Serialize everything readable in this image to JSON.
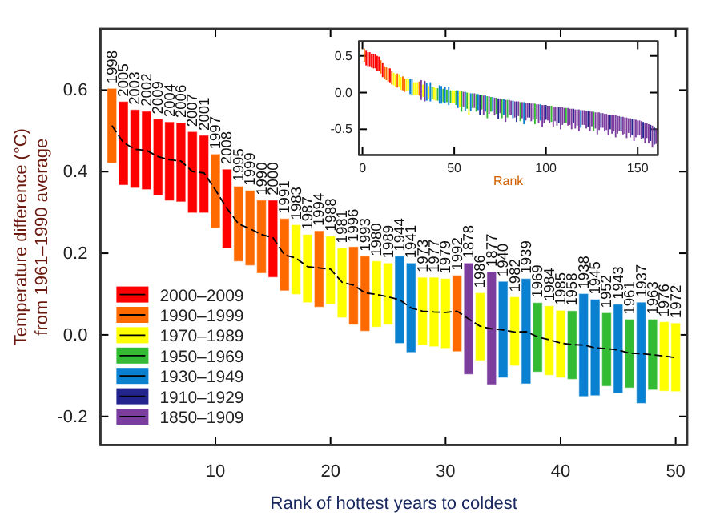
{
  "chart_data": [
    {
      "type": "bar",
      "xlabel": "Rank of hottest years to coldest",
      "ylabel": "Temperature difference (°C)\nfrom 1961–1990 average",
      "xlim": [
        0,
        51
      ],
      "xticks": [
        10,
        20,
        30,
        40,
        50
      ],
      "ylim": [
        -0.27,
        0.75
      ],
      "yticks": [
        -0.2,
        {
          "value": 0,
          "label": "0.0"
        },
        0.2,
        0.4,
        0.6
      ],
      "legend": "bottom left",
      "series": [
        {
          "name": "2000–2009",
          "color": "#ff0000",
          "x": [
            2,
            3,
            4,
            5,
            6,
            7,
            8,
            9,
            11,
            15
          ],
          "base": [
            0.367,
            0.36,
            0.356,
            0.342,
            0.329,
            0.326,
            0.299,
            0.299,
            0.212,
            0.141
          ],
          "values": [
            0.205,
            0.192,
            0.192,
            0.187,
            0.193,
            0.194,
            0.199,
            0.19,
            0.194,
            0.189
          ]
        },
        {
          "name": "1990–1999",
          "color": "#ff6a00",
          "x": [
            1,
            10,
            12,
            13,
            14,
            16,
            19,
            22,
            23,
            31
          ],
          "base": [
            0.421,
            0.262,
            0.18,
            0.17,
            0.151,
            0.108,
            0.068,
            0.025,
            0.009,
            -0.041
          ],
          "values": [
            0.183,
            0.181,
            0.184,
            0.184,
            0.179,
            0.177,
            0.187,
            0.191,
            0.184,
            0.187
          ]
        },
        {
          "name": "1970–1989",
          "color": "#ffff00",
          "x": [
            17,
            18,
            20,
            21,
            24,
            25,
            28,
            29,
            30,
            33,
            36,
            39,
            40,
            49,
            50
          ],
          "base": [
            0.099,
            0.079,
            0.075,
            0.042,
            0.019,
            0.025,
            -0.025,
            -0.029,
            -0.033,
            -0.063,
            -0.076,
            -0.099,
            -0.105,
            -0.138,
            -0.139
          ],
          "values": [
            0.171,
            0.167,
            0.167,
            0.171,
            0.162,
            0.151,
            0.166,
            0.17,
            0.171,
            0.166,
            0.169,
            0.17,
            0.165,
            0.17,
            0.168
          ]
        },
        {
          "name": "1950–1969",
          "color": "#33bb33",
          "x": [
            38,
            41,
            44,
            46,
            48
          ],
          "base": [
            -0.091,
            -0.109,
            -0.126,
            -0.13,
            -0.135
          ],
          "values": [
            0.17,
            0.168,
            0.18,
            0.168,
            0.173
          ]
        },
        {
          "name": "1930–1949",
          "color": "#0a80d0",
          "x": [
            26,
            27,
            35,
            37,
            42,
            43,
            45,
            47
          ],
          "base": [
            -0.021,
            -0.043,
            -0.105,
            -0.12,
            -0.151,
            -0.149,
            -0.143,
            -0.168
          ],
          "values": [
            0.214,
            0.219,
            0.236,
            0.258,
            0.252,
            0.236,
            0.218,
            0.248
          ]
        },
        {
          "name": "1910–1929",
          "color": "#24248f"
        },
        {
          "name": "1850–1909",
          "color": "#7b3d9e",
          "x": [
            32,
            34
          ],
          "base": [
            -0.097,
            -0.122
          ],
          "values": [
            0.273,
            0.277
          ]
        },
        {
          "type": "line",
          "color": "#000000",
          "line_style": "dashed",
          "x": [
            1,
            2,
            3,
            4,
            5,
            6,
            7,
            8,
            9,
            10,
            11,
            12,
            13,
            14,
            15,
            16,
            17,
            18,
            19,
            20,
            21,
            22,
            23,
            24,
            25,
            26,
            27,
            28,
            29,
            30,
            31,
            32,
            33,
            34,
            35,
            36,
            37,
            38,
            39,
            40,
            41,
            42,
            43,
            44,
            45,
            46,
            47,
            48,
            49,
            50
          ],
          "values": [
            0.513,
            0.471,
            0.455,
            0.452,
            0.437,
            0.429,
            0.426,
            0.4,
            0.397,
            0.355,
            0.31,
            0.272,
            0.26,
            0.246,
            0.238,
            0.196,
            0.188,
            0.167,
            0.164,
            0.161,
            0.129,
            0.122,
            0.103,
            0.099,
            0.093,
            0.086,
            0.066,
            0.058,
            0.056,
            0.055,
            0.058,
            0.039,
            0.021,
            0.015,
            0.012,
            0.007,
            0.008,
            -0.005,
            -0.012,
            -0.02,
            -0.024,
            -0.025,
            -0.032,
            -0.034,
            -0.037,
            -0.045,
            -0.046,
            -0.049,
            -0.052,
            -0.056
          ]
        }
      ],
      "annotations": [
        {
          "text": "1998",
          "x": 1,
          "y": 0.604
        },
        {
          "text": "2005",
          "x": 2,
          "y": 0.572
        },
        {
          "text": "2003",
          "x": 3,
          "y": 0.552
        },
        {
          "text": "2002",
          "x": 4,
          "y": 0.548
        },
        {
          "text": "2009",
          "x": 5,
          "y": 0.529
        },
        {
          "text": "2004",
          "x": 6,
          "y": 0.522
        },
        {
          "text": "2006",
          "x": 7,
          "y": 0.52
        },
        {
          "text": "2007",
          "x": 8,
          "y": 0.498
        },
        {
          "text": "2001",
          "x": 9,
          "y": 0.489
        },
        {
          "text": "1997",
          "x": 10,
          "y": 0.443
        },
        {
          "text": "2008",
          "x": 11,
          "y": 0.406
        },
        {
          "text": "1995",
          "x": 12,
          "y": 0.364
        },
        {
          "text": "1999",
          "x": 13,
          "y": 0.354
        },
        {
          "text": "1990",
          "x": 14,
          "y": 0.33
        },
        {
          "text": "2000",
          "x": 15,
          "y": 0.33
        },
        {
          "text": "1991",
          "x": 16,
          "y": 0.285
        },
        {
          "text": "1983",
          "x": 17,
          "y": 0.27
        },
        {
          "text": "1987",
          "x": 18,
          "y": 0.246
        },
        {
          "text": "1994",
          "x": 19,
          "y": 0.255
        },
        {
          "text": "1988",
          "x": 20,
          "y": 0.242
        },
        {
          "text": "1981",
          "x": 21,
          "y": 0.213
        },
        {
          "text": "1996",
          "x": 22,
          "y": 0.216
        },
        {
          "text": "1993",
          "x": 23,
          "y": 0.193
        },
        {
          "text": "1980",
          "x": 24,
          "y": 0.181
        },
        {
          "text": "1989",
          "x": 25,
          "y": 0.176
        },
        {
          "text": "1944",
          "x": 26,
          "y": 0.193
        },
        {
          "text": "1941",
          "x": 27,
          "y": 0.176
        },
        {
          "text": "1973",
          "x": 28,
          "y": 0.141
        },
        {
          "text": "1977",
          "x": 29,
          "y": 0.141
        },
        {
          "text": "1979",
          "x": 30,
          "y": 0.138
        },
        {
          "text": "1992",
          "x": 31,
          "y": 0.146
        },
        {
          "text": "1878",
          "x": 32,
          "y": 0.176
        },
        {
          "text": "1986",
          "x": 33,
          "y": 0.103
        },
        {
          "text": "1877",
          "x": 34,
          "y": 0.155
        },
        {
          "text": "1940",
          "x": 35,
          "y": 0.131
        },
        {
          "text": "1982",
          "x": 36,
          "y": 0.093
        },
        {
          "text": "1939",
          "x": 37,
          "y": 0.138
        },
        {
          "text": "1969",
          "x": 38,
          "y": 0.079
        },
        {
          "text": "1984",
          "x": 39,
          "y": 0.071
        },
        {
          "text": "1985",
          "x": 40,
          "y": 0.06
        },
        {
          "text": "1958",
          "x": 41,
          "y": 0.059
        },
        {
          "text": "1938",
          "x": 42,
          "y": 0.101
        },
        {
          "text": "1945",
          "x": 43,
          "y": 0.087
        },
        {
          "text": "1952",
          "x": 44,
          "y": 0.054
        },
        {
          "text": "1943",
          "x": 45,
          "y": 0.075
        },
        {
          "text": "1961",
          "x": 46,
          "y": 0.038
        },
        {
          "text": "1937",
          "x": 47,
          "y": 0.08
        },
        {
          "text": "1963",
          "x": 48,
          "y": 0.038
        },
        {
          "text": "1976",
          "x": 49,
          "y": 0.032
        },
        {
          "text": "1972",
          "x": 50,
          "y": 0.029
        }
      ]
    },
    {
      "type": "bar",
      "xlabel": "Rank",
      "xlim": [
        -2,
        161
      ],
      "xticks": [
        0,
        50,
        100,
        150
      ],
      "ylim": [
        -0.85,
        0.7
      ],
      "yticks": [
        -0.5,
        {
          "value": 0,
          "label": "0.0"
        },
        0.5
      ],
      "x": [
        1,
        2,
        3,
        4,
        5,
        6,
        7,
        8,
        9,
        10,
        11,
        12,
        13,
        14,
        15,
        16,
        17,
        18,
        19,
        20,
        21,
        22,
        23,
        24,
        25,
        26,
        27,
        28,
        29,
        30,
        31,
        32,
        33,
        34,
        35,
        36,
        37,
        38,
        39,
        40,
        41,
        42,
        43,
        44,
        45,
        46,
        47,
        48,
        49,
        50,
        51,
        52,
        53,
        54,
        55,
        56,
        57,
        58,
        59,
        60,
        61,
        62,
        63,
        64,
        65,
        66,
        67,
        68,
        69,
        70,
        71,
        72,
        73,
        74,
        75,
        76,
        77,
        78,
        79,
        80,
        81,
        82,
        83,
        84,
        85,
        86,
        87,
        88,
        89,
        90,
        91,
        92,
        93,
        94,
        95,
        96,
        97,
        98,
        99,
        100,
        101,
        102,
        103,
        104,
        105,
        106,
        107,
        108,
        109,
        110,
        111,
        112,
        113,
        114,
        115,
        116,
        117,
        118,
        119,
        120,
        121,
        122,
        123,
        124,
        125,
        126,
        127,
        128,
        129,
        130,
        131,
        132,
        133,
        134,
        135,
        136,
        137,
        138,
        139,
        140,
        141,
        142,
        143,
        144,
        145,
        146,
        147,
        148,
        149,
        150,
        151,
        152,
        153,
        154,
        155,
        156,
        157,
        158,
        159,
        160
      ],
      "base": [
        0.42,
        0.37,
        0.36,
        0.36,
        0.34,
        0.33,
        0.33,
        0.3,
        0.3,
        0.26,
        0.21,
        0.18,
        0.17,
        0.15,
        0.14,
        0.11,
        0.1,
        0.08,
        0.07,
        0.08,
        0.04,
        0.03,
        0.01,
        0.02,
        0.03,
        -0.02,
        -0.04,
        -0.03,
        -0.03,
        -0.03,
        -0.04,
        -0.1,
        -0.06,
        -0.12,
        -0.11,
        -0.08,
        -0.12,
        -0.09,
        -0.1,
        -0.11,
        -0.11,
        -0.15,
        -0.15,
        -0.13,
        -0.14,
        -0.13,
        -0.17,
        -0.14,
        -0.14,
        -0.14,
        -0.17,
        -0.21,
        -0.2,
        -0.26,
        -0.19,
        -0.25,
        -0.22,
        -0.3,
        -0.25,
        -0.21,
        -0.21,
        -0.26,
        -0.24,
        -0.31,
        -0.23,
        -0.3,
        -0.26,
        -0.35,
        -0.29,
        -0.26,
        -0.26,
        -0.31,
        -0.29,
        -0.36,
        -0.28,
        -0.35,
        -0.31,
        -0.4,
        -0.34,
        -0.3,
        -0.31,
        -0.35,
        -0.34,
        -0.4,
        -0.32,
        -0.39,
        -0.35,
        -0.43,
        -0.38,
        -0.34,
        -0.34,
        -0.39,
        -0.37,
        -0.43,
        -0.36,
        -0.42,
        -0.38,
        -0.47,
        -0.41,
        -0.37,
        -0.38,
        -0.42,
        -0.4,
        -0.47,
        -0.39,
        -0.45,
        -0.42,
        -0.5,
        -0.44,
        -0.41,
        -0.41,
        -0.45,
        -0.44,
        -0.5,
        -0.42,
        -0.49,
        -0.45,
        -0.53,
        -0.48,
        -0.44,
        -0.44,
        -0.49,
        -0.47,
        -0.53,
        -0.46,
        -0.52,
        -0.49,
        -0.57,
        -0.51,
        -0.48,
        -0.48,
        -0.53,
        -0.51,
        -0.58,
        -0.5,
        -0.56,
        -0.53,
        -0.61,
        -0.56,
        -0.52,
        -0.53,
        -0.57,
        -0.56,
        -0.62,
        -0.55,
        -0.61,
        -0.58,
        -0.66,
        -0.61,
        -0.58,
        -0.58,
        -0.63,
        -0.62,
        -0.69,
        -0.62,
        -0.69,
        -0.66,
        -0.75,
        -0.71,
        -0.7
      ],
      "values": [
        0.18,
        0.2,
        0.19,
        0.19,
        0.19,
        0.19,
        0.19,
        0.2,
        0.19,
        0.18,
        0.19,
        0.18,
        0.18,
        0.18,
        0.19,
        0.18,
        0.17,
        0.17,
        0.19,
        0.17,
        0.17,
        0.19,
        0.18,
        0.16,
        0.15,
        0.21,
        0.22,
        0.17,
        0.17,
        0.17,
        0.19,
        0.27,
        0.17,
        0.28,
        0.24,
        0.17,
        0.26,
        0.17,
        0.17,
        0.17,
        0.17,
        0.25,
        0.24,
        0.18,
        0.22,
        0.17,
        0.25,
        0.17,
        0.17,
        0.17,
        0.2,
        0.24,
        0.22,
        0.28,
        0.2,
        0.26,
        0.22,
        0.3,
        0.24,
        0.2,
        0.2,
        0.24,
        0.22,
        0.28,
        0.2,
        0.26,
        0.22,
        0.3,
        0.24,
        0.2,
        0.2,
        0.24,
        0.22,
        0.28,
        0.2,
        0.26,
        0.22,
        0.3,
        0.24,
        0.2,
        0.2,
        0.24,
        0.22,
        0.28,
        0.2,
        0.26,
        0.22,
        0.3,
        0.24,
        0.2,
        0.2,
        0.24,
        0.22,
        0.28,
        0.2,
        0.26,
        0.22,
        0.3,
        0.24,
        0.2,
        0.2,
        0.24,
        0.22,
        0.28,
        0.2,
        0.26,
        0.22,
        0.3,
        0.24,
        0.2,
        0.2,
        0.24,
        0.22,
        0.28,
        0.2,
        0.26,
        0.22,
        0.3,
        0.24,
        0.2,
        0.2,
        0.24,
        0.22,
        0.28,
        0.2,
        0.26,
        0.22,
        0.3,
        0.24,
        0.2,
        0.2,
        0.24,
        0.22,
        0.28,
        0.2,
        0.26,
        0.22,
        0.3,
        0.24,
        0.2,
        0.2,
        0.24,
        0.22,
        0.28,
        0.2,
        0.26,
        0.22,
        0.3,
        0.24,
        0.2,
        0.2,
        0.24,
        0.22,
        0.28,
        0.2,
        0.26,
        0.22,
        0.3,
        0.24,
        0.2
      ],
      "colors": [
        "#ff6a00",
        "#ff0000",
        "#ff0000",
        "#ff0000",
        "#ff0000",
        "#ff0000",
        "#ff0000",
        "#ff0000",
        "#ff0000",
        "#ff6a00",
        "#ff0000",
        "#ff6a00",
        "#ff6a00",
        "#ff6a00",
        "#ff0000",
        "#ff6a00",
        "#ffff00",
        "#ffff00",
        "#ff6a00",
        "#ffff00",
        "#ffff00",
        "#ff6a00",
        "#ff6a00",
        "#ffff00",
        "#ffff00",
        "#0a80d0",
        "#0a80d0",
        "#ffff00",
        "#ffff00",
        "#ffff00",
        "#ff6a00",
        "#7b3d9e",
        "#ffff00",
        "#7b3d9e",
        "#0a80d0",
        "#ffff00",
        "#0a80d0",
        "#33bb33",
        "#ffff00",
        "#ffff00",
        "#33bb33",
        "#0a80d0",
        "#0a80d0",
        "#33bb33",
        "#0a80d0",
        "#33bb33",
        "#0a80d0",
        "#33bb33",
        "#ffff00",
        "#ffff00",
        "#33bb33",
        "#0a80d0",
        "#ffff00",
        "#33bb33",
        "#7b3d9e",
        "#0a80d0",
        "#33bb33",
        "#ffff00",
        "#0a80d0",
        "#33bb33",
        "#7b3d9e",
        "#33bb33",
        "#0a80d0",
        "#24248f",
        "#33bb33",
        "#7b3d9e",
        "#0a80d0",
        "#33bb33",
        "#7b3d9e",
        "#33bb33",
        "#0a80d0",
        "#7b3d9e",
        "#33bb33",
        "#24248f",
        "#7b3d9e",
        "#33bb33",
        "#0a80d0",
        "#7b3d9e",
        "#33bb33",
        "#7b3d9e",
        "#7b3d9e",
        "#0a80d0",
        "#7b3d9e",
        "#24248f",
        "#7b3d9e",
        "#33bb33",
        "#7b3d9e",
        "#0a80d0",
        "#7b3d9e",
        "#7b3d9e",
        "#24248f",
        "#7b3d9e",
        "#7b3d9e",
        "#33bb33",
        "#7b3d9e",
        "#7b3d9e",
        "#0a80d0",
        "#7b3d9e",
        "#7b3d9e",
        "#24248f",
        "#7b3d9e",
        "#7b3d9e",
        "#33bb33",
        "#7b3d9e",
        "#7b3d9e",
        "#7b3d9e",
        "#24248f",
        "#7b3d9e",
        "#7b3d9e",
        "#7b3d9e",
        "#33bb33",
        "#7b3d9e",
        "#7b3d9e",
        "#7b3d9e",
        "#24248f",
        "#7b3d9e",
        "#7b3d9e",
        "#7b3d9e",
        "#0a80d0",
        "#7b3d9e",
        "#7b3d9e",
        "#7b3d9e",
        "#24248f",
        "#7b3d9e",
        "#7b3d9e",
        "#33bb33",
        "#7b3d9e",
        "#7b3d9e",
        "#7b3d9e",
        "#24248f",
        "#7b3d9e",
        "#7b3d9e",
        "#7b3d9e",
        "#7b3d9e",
        "#24248f",
        "#7b3d9e",
        "#7b3d9e",
        "#7b3d9e",
        "#7b3d9e",
        "#7b3d9e",
        "#24248f",
        "#7b3d9e",
        "#7b3d9e",
        "#7b3d9e",
        "#7b3d9e",
        "#7b3d9e",
        "#24248f",
        "#7b3d9e",
        "#7b3d9e",
        "#7b3d9e",
        "#7b3d9e",
        "#7b3d9e",
        "#24248f",
        "#7b3d9e",
        "#7b3d9e",
        "#7b3d9e",
        "#24248f",
        "#7b3d9e",
        "#24248f",
        "#7b3d9e"
      ]
    }
  ]
}
